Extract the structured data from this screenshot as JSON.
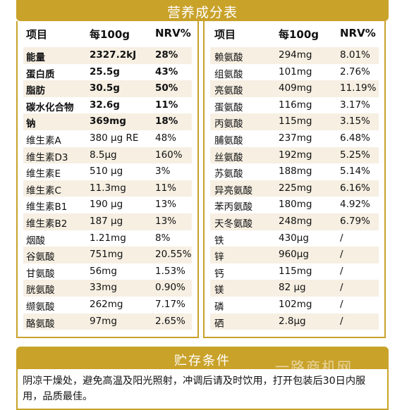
{
  "nutrition": {
    "title": "营养成分表",
    "headers": [
      "项目",
      "每100g",
      "NRV%"
    ],
    "left_rows": [
      {
        "name": "能量",
        "amount": "2327.2kJ",
        "nrv": "28%",
        "bold": true
      },
      {
        "name": "蛋白质",
        "amount": "25.5g",
        "nrv": "43%",
        "bold": true
      },
      {
        "name": "脂肪",
        "amount": "30.5g",
        "nrv": "50%",
        "bold": true
      },
      {
        "name": "碳水化合物",
        "amount": "32.6g",
        "nrv": "11%",
        "bold": true
      },
      {
        "name": "钠",
        "amount": "369mg",
        "nrv": "18%",
        "bold": true
      },
      {
        "name": "维生素A",
        "amount": "380 μg RE",
        "nrv": "48%",
        "bold": false
      },
      {
        "name": "维生素D3",
        "amount": "8.5μg",
        "nrv": "160%",
        "bold": false
      },
      {
        "name": "维生素E",
        "amount": "510 μg",
        "nrv": "3%",
        "bold": false
      },
      {
        "name": "维生素C",
        "amount": "11.3mg",
        "nrv": "11%",
        "bold": false
      },
      {
        "name": "维生素B1",
        "amount": "190 μg",
        "nrv": "13%",
        "bold": false
      },
      {
        "name": "维生素B2",
        "amount": "187 μg",
        "nrv": "13%",
        "bold": false
      },
      {
        "name": "烟酸",
        "amount": "1.21mg",
        "nrv": "8%",
        "bold": false
      },
      {
        "name": "谷氨酸",
        "amount": "751mg",
        "nrv": "20.55%",
        "bold": false
      },
      {
        "name": "甘氨酸",
        "amount": "56mg",
        "nrv": "1.53%",
        "bold": false
      },
      {
        "name": "胱氨酸",
        "amount": "33mg",
        "nrv": "0.90%",
        "bold": false
      },
      {
        "name": "缬氨酸",
        "amount": "262mg",
        "nrv": "7.17%",
        "bold": false
      },
      {
        "name": "酪氨酸",
        "amount": "97mg",
        "nrv": "2.65%",
        "bold": false
      }
    ],
    "right_rows": [
      {
        "name": "赖氨酸",
        "amount": "294mg",
        "nrv": "8.01%"
      },
      {
        "name": "组氨酸",
        "amount": "101mg",
        "nrv": "2.76%"
      },
      {
        "name": "亮氨酸",
        "amount": "409mg",
        "nrv": "11.19%"
      },
      {
        "name": "蛋氨酸",
        "amount": "116mg",
        "nrv": "3.17%"
      },
      {
        "name": "丙氨酸",
        "amount": "115mg",
        "nrv": "3.15%"
      },
      {
        "name": "脯氨酸",
        "amount": "237mg",
        "nrv": "6.48%"
      },
      {
        "name": "丝氨酸",
        "amount": "192mg",
        "nrv": "5.25%"
      },
      {
        "name": "苏氨酸",
        "amount": "188mg",
        "nrv": "5.14%"
      },
      {
        "name": "异亮氨酸",
        "amount": "225mg",
        "nrv": "6.16%"
      },
      {
        "name": "苯丙氨酸",
        "amount": "180mg",
        "nrv": "4.92%"
      },
      {
        "name": "天冬氨酸",
        "amount": "248mg",
        "nrv": "6.79%"
      },
      {
        "name": "铁",
        "amount": "430μg",
        "nrv": "/"
      },
      {
        "name": "锌",
        "amount": "960μg",
        "nrv": "/"
      },
      {
        "name": "钙",
        "amount": "115mg",
        "nrv": "/"
      },
      {
        "name": "镁",
        "amount": "82 μg",
        "nrv": "/"
      },
      {
        "name": "磷",
        "amount": "102mg",
        "nrv": "/"
      },
      {
        "name": "硒",
        "amount": "2.8μg",
        "nrv": "/"
      }
    ]
  },
  "storage": {
    "title": "贮存条件",
    "text": "阴凉干燥处，避免高温及阳光照射，冲调后请及时饮用，打开包装后30日内服用，品质最佳。"
  },
  "watermark": "一路商机网",
  "colors": {
    "gold": "#c9a22a",
    "stripe": "#f6efe2"
  }
}
